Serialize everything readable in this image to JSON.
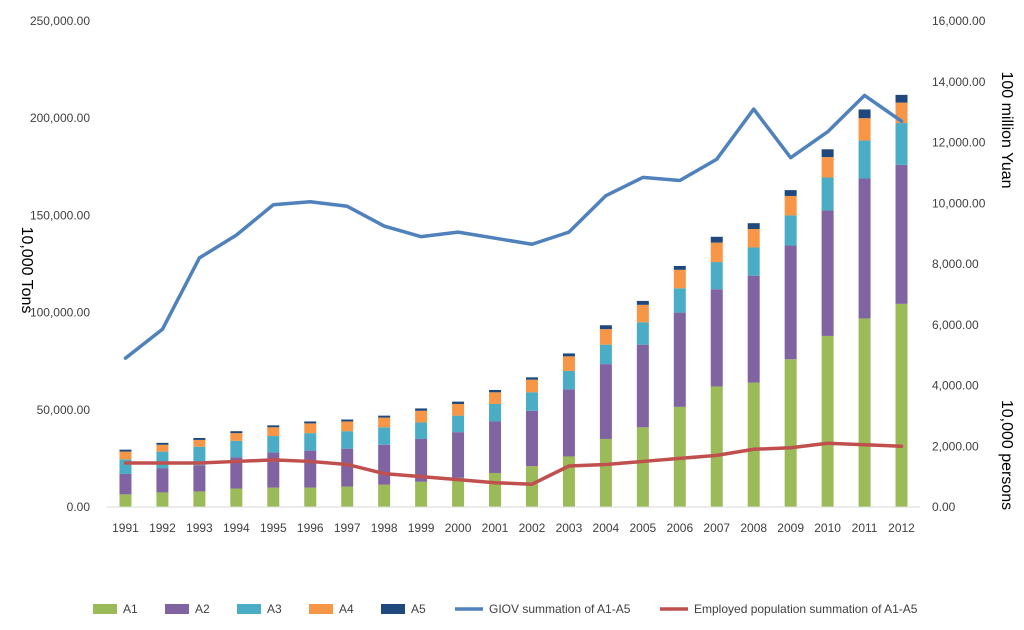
{
  "chart_data": {
    "type": "bar",
    "stacked": true,
    "categories": [
      "1991",
      "1992",
      "1993",
      "1994",
      "1995",
      "1996",
      "1997",
      "1998",
      "1999",
      "2000",
      "2001",
      "2002",
      "2003",
      "2004",
      "2005",
      "2006",
      "2007",
      "2008",
      "2009",
      "2010",
      "2011",
      "2012"
    ],
    "series": [
      {
        "name": "A1",
        "kind": "bar",
        "axis": "left",
        "color": "#9BBB59",
        "values": [
          6500,
          7500,
          8000,
          9500,
          10000,
          10000,
          10500,
          11500,
          13000,
          15000,
          17500,
          21000,
          26000,
          35000,
          41000,
          51500,
          62000,
          64000,
          76000,
          88000,
          97000,
          104500
        ]
      },
      {
        "name": "A2",
        "kind": "bar",
        "axis": "left",
        "color": "#8064A2",
        "values": [
          10500,
          12500,
          13500,
          16000,
          18000,
          19000,
          19500,
          20500,
          22000,
          23500,
          26500,
          28500,
          34500,
          38500,
          42500,
          48500,
          50000,
          55000,
          58500,
          64500,
          72000,
          71500
        ]
      },
      {
        "name": "A3",
        "kind": "bar",
        "axis": "left",
        "color": "#4BACC6",
        "values": [
          7500,
          8500,
          9500,
          8500,
          8500,
          9000,
          9000,
          9000,
          8500,
          8500,
          9000,
          9500,
          9500,
          10000,
          11500,
          12500,
          14000,
          14500,
          15500,
          17000,
          19500,
          21500
        ]
      },
      {
        "name": "A4",
        "kind": "bar",
        "axis": "left",
        "color": "#F79646",
        "values": [
          4000,
          3500,
          3500,
          4000,
          4500,
          5000,
          5000,
          5000,
          6000,
          6000,
          6000,
          6500,
          7500,
          8000,
          9000,
          9500,
          10000,
          9500,
          10000,
          10500,
          11500,
          10500
        ]
      },
      {
        "name": "A5",
        "kind": "bar",
        "axis": "left",
        "color": "#1F497D",
        "values": [
          1000,
          1000,
          1000,
          1000,
          1000,
          1000,
          1000,
          1000,
          1200,
          1200,
          1200,
          1200,
          1500,
          2000,
          2000,
          2000,
          3000,
          3000,
          3000,
          4000,
          4500,
          4000
        ]
      },
      {
        "name": "GIOV summation of A1-A5",
        "kind": "line",
        "axis": "right",
        "color": "#4F81BD",
        "values": [
          4900,
          5850,
          8200,
          8950,
          9950,
          10050,
          9900,
          9250,
          8900,
          9050,
          8850,
          8650,
          9050,
          10250,
          10850,
          10750,
          11450,
          13100,
          11500,
          12350,
          13550,
          12700
        ]
      },
      {
        "name": "Employed population summation of A1-A5",
        "kind": "line",
        "axis": "right",
        "color": "#C0504D",
        "values": [
          1450,
          1450,
          1450,
          1500,
          1550,
          1500,
          1400,
          1100,
          1000,
          900,
          800,
          750,
          1350,
          1400,
          1500,
          1600,
          1700,
          1900,
          1950,
          2100,
          2050,
          2000
        ]
      }
    ],
    "y_left": {
      "label": "10,000 Tons",
      "range": [
        0,
        250000
      ],
      "ticks": [
        0,
        50000,
        100000,
        150000,
        200000,
        250000
      ],
      "tick_labels": [
        "0.00",
        "50,000.00",
        "100,000.00",
        "150,000.00",
        "200,000.00",
        "250,000.00"
      ]
    },
    "y_right": {
      "label_top": "100 million Yuan",
      "label_bottom": "10,000 persons",
      "range": [
        0,
        16000
      ],
      "ticks": [
        0,
        2000,
        4000,
        6000,
        8000,
        10000,
        12000,
        14000,
        16000
      ],
      "tick_labels": [
        "0.00",
        "2,000.00",
        "4,000.00",
        "6,000.00",
        "8,000.00",
        "10,000.00",
        "12,000.00",
        "14,000.00",
        "16,000.00"
      ]
    },
    "grid": false,
    "legend_position": "bottom"
  }
}
